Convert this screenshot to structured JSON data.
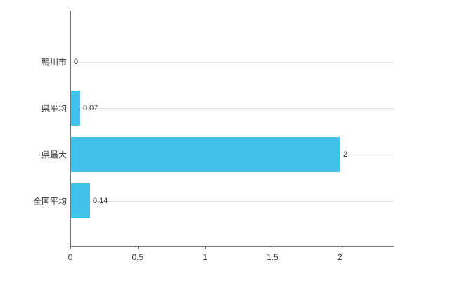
{
  "chart_data": {
    "type": "bar",
    "orientation": "horizontal",
    "title": "",
    "xlabel": "",
    "ylabel": "",
    "categories": [
      "鴨川市",
      "県平均",
      "県最大",
      "全国平均"
    ],
    "values": [
      0,
      0.07,
      2,
      0.14
    ],
    "value_labels": [
      "0",
      "0.07",
      "2",
      "0.14"
    ],
    "x_ticks": [
      0,
      0.5,
      1,
      1.5,
      2
    ],
    "x_tick_labels": [
      "0",
      "0.5",
      "1",
      "1.5",
      "2"
    ],
    "xlim": [
      0,
      2.4
    ],
    "grid": true,
    "legend": false,
    "bar_color": "#41c0ea",
    "axis_color": "#737373",
    "grid_color": "#e4e4e4",
    "background_color": "#ffffff"
  }
}
